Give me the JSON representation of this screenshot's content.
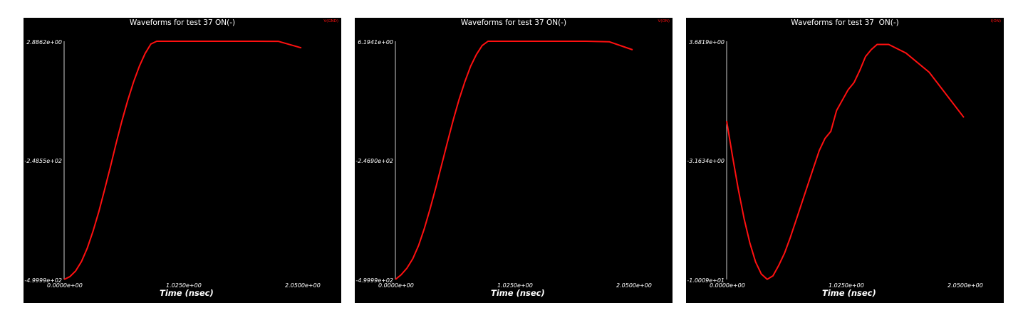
{
  "chart_data": [
    {
      "type": "line",
      "title": "Waveforms for test 37 ON(-)",
      "legend": "V(GND)",
      "xlabel": "Time (nsec)",
      "ylabel": "",
      "xlim": [
        0.0,
        2.05
      ],
      "x_ticks": [
        "0.0000e+00",
        "1.0250e+00",
        "2.0500e+00"
      ],
      "y_ticks": [
        "2.8862e+00",
        "-2.4855e+02",
        "-4.9999e+02"
      ],
      "ylim": [
        -499.99,
        2.8862
      ],
      "grid": false,
      "color": "#ff1010",
      "series": [
        {
          "name": "V(GND)",
          "x": [
            0.0,
            0.05,
            0.1,
            0.15,
            0.2,
            0.25,
            0.3,
            0.35,
            0.4,
            0.45,
            0.5,
            0.55,
            0.6,
            0.65,
            0.7,
            0.75,
            0.8,
            0.85,
            0.9,
            0.95,
            1.0,
            1.05,
            1.1,
            1.15,
            1.25,
            1.35,
            1.5,
            1.65,
            1.85,
            2.05
          ],
          "y": [
            -500,
            -494,
            -482,
            -462,
            -434,
            -398,
            -357,
            -310,
            -262,
            -212,
            -165,
            -122,
            -83,
            -50,
            -23,
            -3,
            11,
            21,
            27.5,
            30.5,
            31.5,
            32,
            31,
            30,
            24,
            19,
            14,
            9,
            2.8,
            -11
          ]
        }
      ]
    },
    {
      "type": "line",
      "title": "Waveforms for test 37 ON(-)",
      "legend": "V(ON)",
      "xlabel": "Time (nsec)",
      "ylabel": "",
      "xlim": [
        0.0,
        2.05
      ],
      "x_ticks": [
        "0.0000e+00",
        "1.0250e+00",
        "2.0500e+00"
      ],
      "y_ticks": [
        "6.1941e+00",
        "-2.4690e+02",
        "-4.9999e+02"
      ],
      "ylim": [
        -499.99,
        6.1941
      ],
      "grid": false,
      "color": "#ff1010",
      "series": [
        {
          "name": "V(ON)",
          "x": [
            0.0,
            0.05,
            0.1,
            0.15,
            0.2,
            0.25,
            0.3,
            0.35,
            0.4,
            0.45,
            0.5,
            0.55,
            0.6,
            0.65,
            0.7,
            0.75,
            0.8,
            0.85,
            0.9,
            0.95,
            1.0,
            1.05,
            1.1,
            1.15,
            1.25,
            1.35,
            1.5,
            1.65,
            1.85,
            2.05
          ],
          "y": [
            -500,
            -490,
            -476,
            -456,
            -428,
            -392,
            -350,
            -304,
            -256,
            -208,
            -161,
            -118,
            -80,
            -47,
            -22,
            -3,
            11,
            20,
            25.5,
            28.5,
            30.5,
            32,
            31.5,
            30,
            25,
            21,
            15,
            10,
            5,
            -12
          ]
        }
      ]
    },
    {
      "type": "line",
      "title": "Waveforms for test 37  ON(-)",
      "legend": "I(ON)",
      "xlabel": "Time (nsec)",
      "ylabel": "",
      "xlim": [
        0.0,
        2.05
      ],
      "x_ticks": [
        "0.0000e+00",
        "1.0250e+00",
        "2.0500e+00"
      ],
      "y_ticks": [
        "3.6819e+00",
        "-3.1634e+00",
        "-1.0009e+01"
      ],
      "ylim": [
        -10.009,
        3.6819
      ],
      "grid": false,
      "color": "#ff1010",
      "series": [
        {
          "name": "I(ON)",
          "x": [
            0.0,
            0.05,
            0.1,
            0.15,
            0.2,
            0.25,
            0.3,
            0.35,
            0.4,
            0.45,
            0.5,
            0.55,
            0.6,
            0.65,
            0.7,
            0.75,
            0.8,
            0.85,
            0.9,
            0.95,
            1.0,
            1.05,
            1.1,
            1.15,
            1.2,
            1.25,
            1.3,
            1.4,
            1.55,
            1.75,
            2.05
          ],
          "y": [
            -0.9,
            -2.9,
            -4.8,
            -6.5,
            -7.9,
            -9.0,
            -9.7,
            -10.0,
            -9.8,
            -9.2,
            -8.5,
            -7.6,
            -6.6,
            -5.6,
            -4.6,
            -3.6,
            -2.6,
            -1.9,
            -1.5,
            -0.3,
            0.3,
            0.9,
            1.3,
            2.0,
            2.8,
            3.2,
            3.5,
            3.5,
            3.0,
            1.9,
            -0.7
          ]
        }
      ]
    }
  ]
}
